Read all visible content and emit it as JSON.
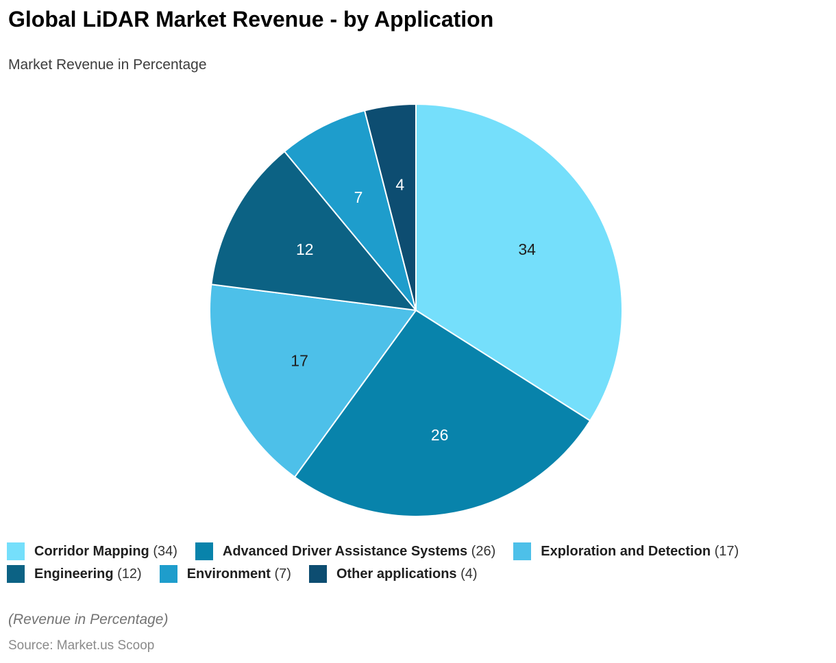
{
  "header": {
    "title": "Global LiDAR Market Revenue - by Application",
    "subtitle": "Market Revenue in Percentage"
  },
  "chart_data": {
    "type": "pie",
    "title": "Global LiDAR Market Revenue - by Application",
    "unit": "percent",
    "start_angle_deg": 0,
    "direction": "clockwise",
    "legend_position": "bottom",
    "slice_border_color": "#ffffff",
    "slices": [
      {
        "label": "Corridor Mapping",
        "value": 34,
        "color": "#75DFFB",
        "label_color": "#1f1f1f"
      },
      {
        "label": "Advanced Driver Assistance Systems",
        "value": 26,
        "color": "#0883AB",
        "label_color": "#ffffff"
      },
      {
        "label": "Exploration and Detection",
        "value": 17,
        "color": "#4DC0E9",
        "label_color": "#1f1f1f"
      },
      {
        "label": "Engineering",
        "value": 12,
        "color": "#0C6284",
        "label_color": "#ffffff"
      },
      {
        "label": "Environment",
        "value": 7,
        "color": "#1E9DCC",
        "label_color": "#ffffff"
      },
      {
        "label": "Other applications",
        "value": 4,
        "color": "#0D4D71",
        "label_color": "#ffffff"
      }
    ]
  },
  "footer": {
    "note": "(Revenue in Percentage)",
    "source": "Source: Market.us Scoop"
  }
}
